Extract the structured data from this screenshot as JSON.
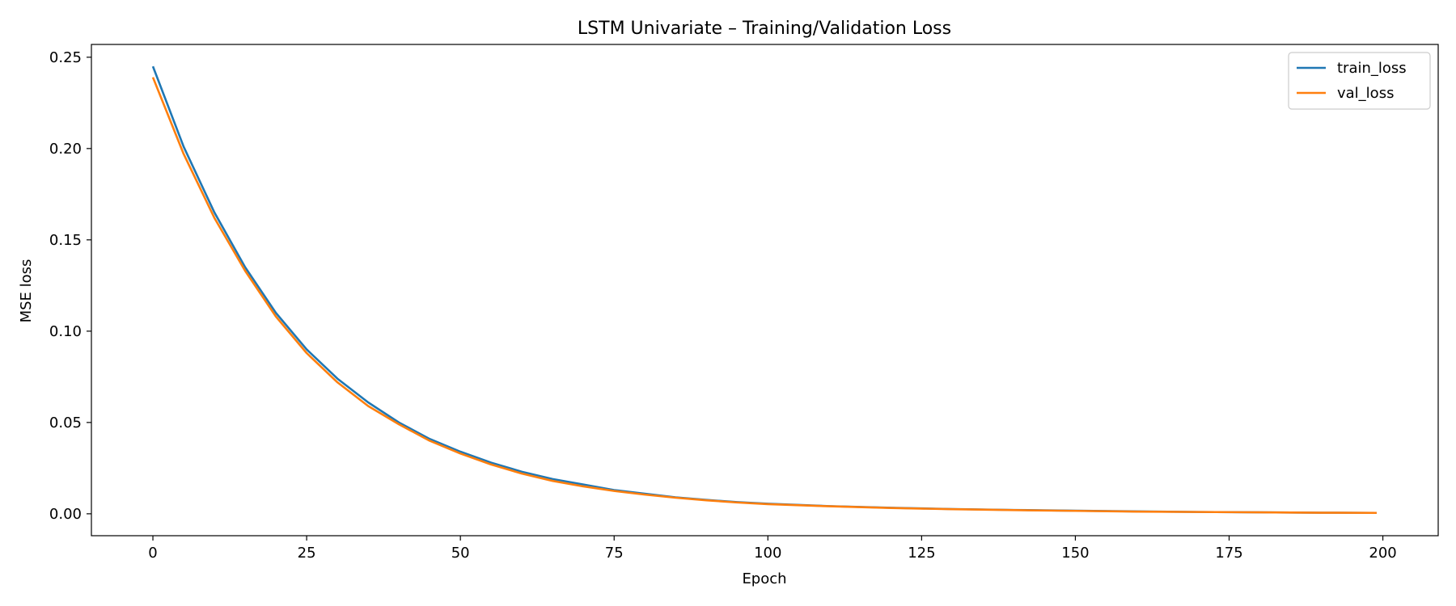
{
  "chart_data": {
    "type": "line",
    "title": "LSTM Univariate – Training/Validation Loss",
    "xlabel": "Epoch",
    "ylabel": "MSE loss",
    "xlim": [
      -10,
      209
    ],
    "ylim": [
      -0.012,
      0.257
    ],
    "xticks": [
      0,
      25,
      50,
      75,
      100,
      125,
      150,
      175,
      200
    ],
    "yticks": [
      0.0,
      0.05,
      0.1,
      0.15,
      0.2,
      0.25
    ],
    "ytick_labels": [
      "0.00",
      "0.05",
      "0.10",
      "0.15",
      "0.20",
      "0.25"
    ],
    "grid": false,
    "legend_position": "top-right",
    "series": [
      {
        "name": "train_loss",
        "color": "#1f77b4",
        "x": [
          0,
          5,
          10,
          15,
          20,
          25,
          30,
          35,
          40,
          45,
          50,
          55,
          60,
          65,
          70,
          75,
          80,
          85,
          90,
          95,
          100,
          110,
          120,
          130,
          140,
          150,
          160,
          170,
          180,
          190,
          199
        ],
        "values": [
          0.245,
          0.201,
          0.165,
          0.135,
          0.11,
          0.09,
          0.074,
          0.061,
          0.05,
          0.041,
          0.034,
          0.028,
          0.023,
          0.019,
          0.016,
          0.013,
          0.011,
          0.009,
          0.0076,
          0.0064,
          0.0055,
          0.0042,
          0.0033,
          0.0026,
          0.0021,
          0.0017,
          0.0013,
          0.001,
          0.0008,
          0.0006,
          0.0005
        ]
      },
      {
        "name": "val_loss",
        "color": "#ff7f0e",
        "x": [
          0,
          5,
          10,
          15,
          20,
          25,
          30,
          35,
          40,
          45,
          50,
          55,
          60,
          65,
          70,
          75,
          80,
          85,
          90,
          95,
          100,
          110,
          120,
          130,
          140,
          150,
          160,
          170,
          180,
          190,
          199
        ],
        "values": [
          0.239,
          0.197,
          0.162,
          0.133,
          0.108,
          0.088,
          0.072,
          0.059,
          0.049,
          0.04,
          0.033,
          0.027,
          0.022,
          0.018,
          0.015,
          0.0125,
          0.0105,
          0.0088,
          0.0074,
          0.0062,
          0.0053,
          0.0041,
          0.0032,
          0.0025,
          0.002,
          0.0016,
          0.0012,
          0.001,
          0.0008,
          0.0006,
          0.0005
        ]
      }
    ]
  }
}
